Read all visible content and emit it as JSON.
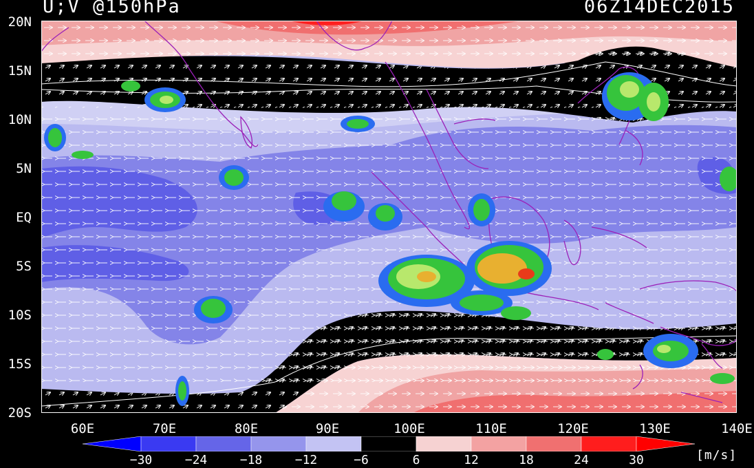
{
  "header": {
    "variable": "U;V @150hPa",
    "valid_time": "06Z14DEC2015"
  },
  "map": {
    "projection": "equirectangular",
    "lon_range": [
      55,
      140
    ],
    "lat_range": [
      -20,
      20
    ],
    "lat_ticks": [
      "20N",
      "15N",
      "10N",
      "5N",
      "EQ",
      "5S",
      "10S",
      "15S",
      "20S"
    ],
    "lon_ticks": [
      "60E",
      "70E",
      "80E",
      "90E",
      "100E",
      "110E",
      "120E",
      "130E",
      "140E"
    ],
    "field": "zonal wind shading with wind vectors",
    "overlay": "satellite convection (yellow/green)"
  },
  "legend": {
    "labels": [
      "−30",
      "−24",
      "−18",
      "−12",
      "−6",
      "6",
      "12",
      "18",
      "24",
      "30"
    ],
    "colors": [
      "#0000ff",
      "#3a3af2",
      "#6565e8",
      "#9595ec",
      "#c3c3f3",
      "#000000",
      "#f6d2d2",
      "#f3a2a2",
      "#f07070",
      "#ff1d1d",
      "#ff0000"
    ],
    "units": "[m/s]"
  },
  "colors": {
    "easterly_strong": "#5f5fe6",
    "easterly_moderate": "#8484e8",
    "easterly_weak": "#babaf0",
    "calm": "#000000",
    "westerly_weak": "#f7d3d3",
    "westerly_moderate": "#f0a4a4",
    "westerly_strong": "#f06f6f",
    "coastline": "#9b20b8",
    "convection_core": "#e8b030",
    "convection_mid": "#36c43c",
    "convection_edge": "#2a6cf0"
  }
}
